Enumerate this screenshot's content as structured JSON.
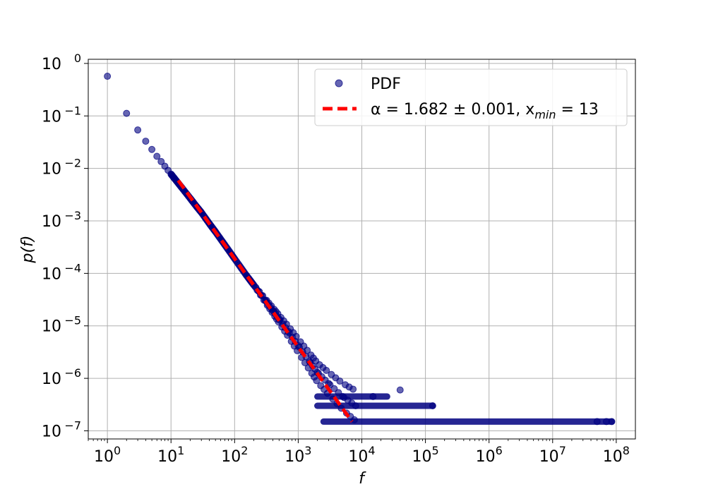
{
  "chart_data": {
    "type": "scatter",
    "xlabel": "f",
    "ylabel": "p(f)",
    "xscale": "log",
    "yscale": "log",
    "xlim": [
      0.5,
      200000000
    ],
    "ylim": [
      7e-08,
      1.2
    ],
    "grid": true,
    "legend_position": "top-right",
    "x_ticks": [
      {
        "value": 1,
        "base": "10",
        "exp": "0"
      },
      {
        "value": 10,
        "base": "10",
        "exp": "1"
      },
      {
        "value": 100,
        "base": "10",
        "exp": "2"
      },
      {
        "value": 1000,
        "base": "10",
        "exp": "3"
      },
      {
        "value": 10000,
        "base": "10",
        "exp": "4"
      },
      {
        "value": 100000,
        "base": "10",
        "exp": "5"
      },
      {
        "value": 1000000,
        "base": "10",
        "exp": "6"
      },
      {
        "value": 10000000,
        "base": "10",
        "exp": "7"
      },
      {
        "value": 100000000,
        "base": "10",
        "exp": "8"
      }
    ],
    "y_ticks": [
      {
        "value": 1,
        "base": "10",
        "exp": "0"
      },
      {
        "value": 0.1,
        "base": "10",
        "exp": "−1"
      },
      {
        "value": 0.01,
        "base": "10",
        "exp": "−2"
      },
      {
        "value": 0.001,
        "base": "10",
        "exp": "−3"
      },
      {
        "value": 0.0001,
        "base": "10",
        "exp": "−4"
      },
      {
        "value": 1e-05,
        "base": "10",
        "exp": "−5"
      },
      {
        "value": 1e-06,
        "base": "10",
        "exp": "−6"
      },
      {
        "value": 1e-07,
        "base": "10",
        "exp": "−7"
      }
    ],
    "series": [
      {
        "name": "PDF",
        "kind": "scatter",
        "color": "#000080",
        "x": [
          1,
          2,
          3,
          4,
          5,
          6,
          7,
          8,
          9,
          10,
          12,
          15,
          20,
          25,
          30,
          40,
          50,
          70,
          100,
          150,
          200,
          300,
          400,
          500,
          700,
          1000,
          1500,
          2000,
          3000,
          5000,
          8000,
          15000,
          40000,
          130000
        ],
        "y": [
          0.57,
          0.112,
          0.054,
          0.033,
          0.023,
          0.017,
          0.0135,
          0.011,
          0.0092,
          0.0078,
          0.0059,
          0.0042,
          0.0027,
          0.0019,
          0.00145,
          0.00089,
          0.00062,
          0.00035,
          0.00019,
          9.5e-05,
          6e-05,
          3.1e-05,
          1.95e-05,
          1.35e-05,
          7.8e-06,
          4.2e-06,
          2.1e-06,
          1.3e-06,
          8e-07,
          4.5e-07,
          3e-07,
          4.5e-07,
          6e-07,
          3e-07
        ],
        "bands": [
          {
            "y": 1.5e-07,
            "x_from": 2500,
            "x_to": 85000000
          },
          {
            "y": 3e-07,
            "x_from": 2000,
            "x_to": 130000
          },
          {
            "y": 4.5e-07,
            "x_from": 2000,
            "x_to": 25000
          }
        ],
        "outliers": [
          {
            "x": 50000000,
            "y": 1.5e-07
          },
          {
            "x": 70000000,
            "y": 1.5e-07
          },
          {
            "x": 85000000,
            "y": 1.5e-07
          }
        ]
      },
      {
        "name_prefix": "α = 1.682 ± 0.001,  x",
        "name_sub": "min",
        "name_suffix": " = 13",
        "kind": "line",
        "style": "dashed",
        "color": "#ff0000",
        "alpha": 1.682,
        "alpha_err": 0.001,
        "xmin": 13,
        "x": [
          13,
          7000
        ],
        "y": [
          0.0059,
          1.5e-07
        ]
      }
    ]
  }
}
